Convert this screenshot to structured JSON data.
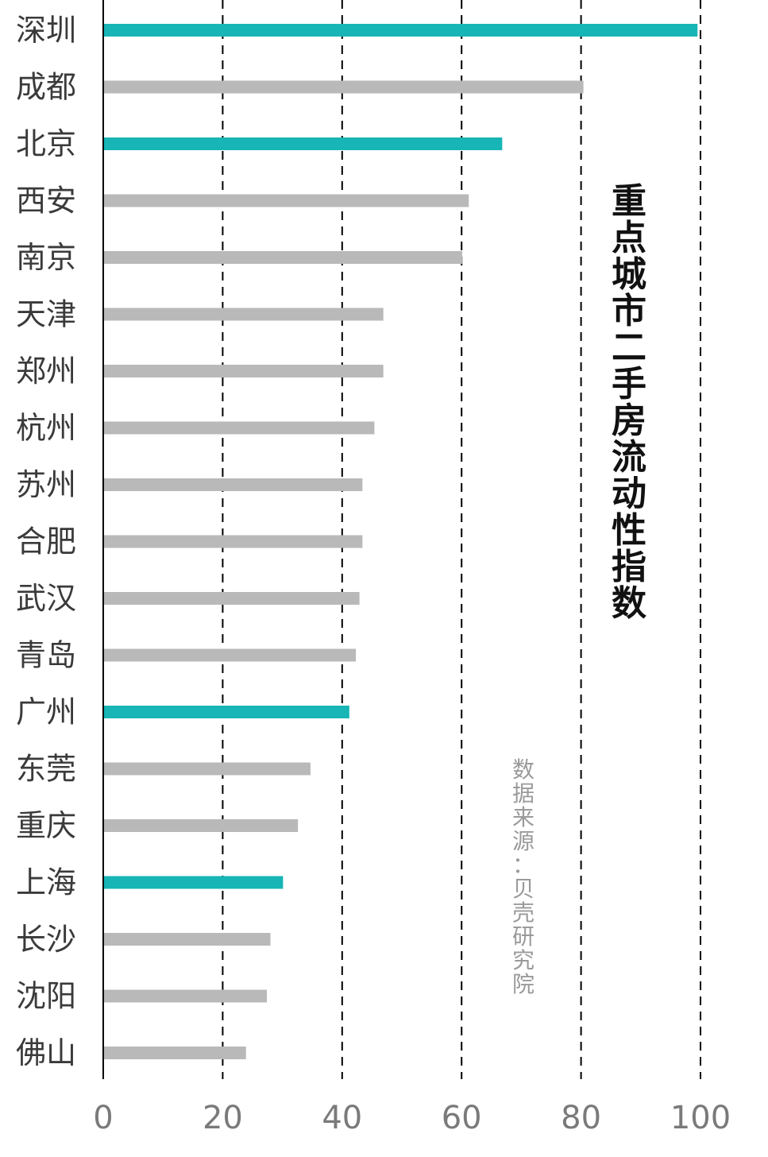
{
  "chart_data": {
    "type": "bar",
    "orientation": "horizontal",
    "title": "重点城市二手房流动性指数",
    "source": "数据来源：贝壳研究院",
    "categories": [
      "深圳",
      "成都",
      "北京",
      "西安",
      "南京",
      "天津",
      "郑州",
      "杭州",
      "苏州",
      "合肥",
      "武汉",
      "青岛",
      "广州",
      "东莞",
      "重庆",
      "上海",
      "长沙",
      "沈阳",
      "佛山"
    ],
    "values": [
      99.5,
      80.4,
      66.8,
      61.2,
      60.1,
      46.9,
      46.9,
      45.4,
      43.4,
      43.4,
      42.9,
      42.3,
      41.2,
      34.7,
      32.6,
      30.1,
      28.0,
      27.4,
      23.9
    ],
    "highlight": [
      true,
      false,
      true,
      false,
      false,
      false,
      false,
      false,
      false,
      false,
      false,
      false,
      true,
      false,
      false,
      true,
      false,
      false,
      false
    ],
    "xlim": [
      0,
      100
    ],
    "xticks": [
      0,
      20,
      40,
      60,
      80,
      100
    ],
    "xtick_labels": [
      "0",
      "20",
      "40",
      "60",
      "80",
      "100"
    ],
    "grid": "vertical-dashed",
    "colors": {
      "highlight": "#17b5b5",
      "normal": "#b9b9b9",
      "grid": "#000000",
      "axis": "#000000"
    }
  }
}
